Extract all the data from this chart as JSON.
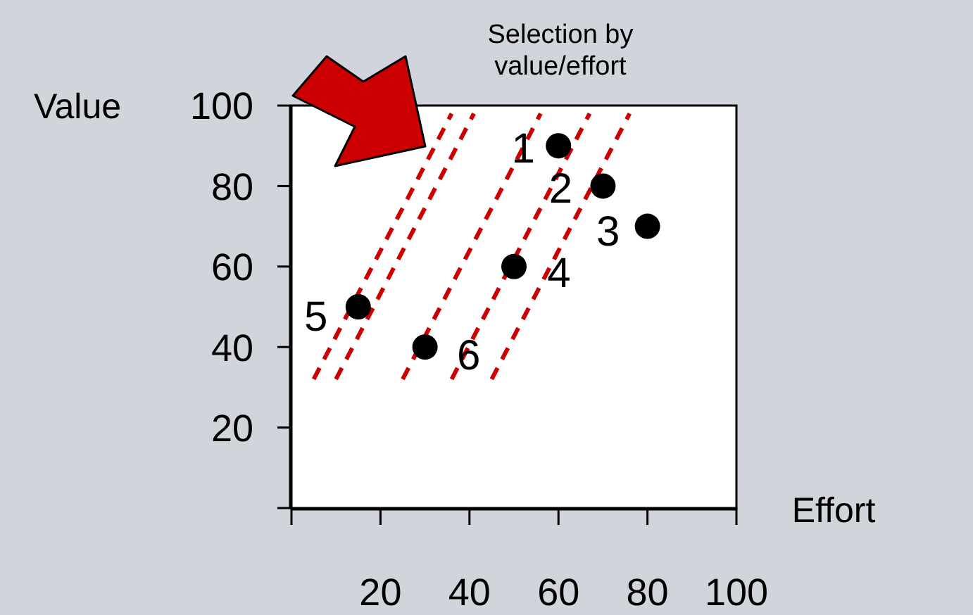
{
  "chart_data": {
    "type": "scatter",
    "title": "Selection by value/effort",
    "xlabel": "Effort",
    "ylabel": "Value",
    "xlim": [
      0,
      100
    ],
    "ylim": [
      0,
      100
    ],
    "xticks": [
      {
        "value": 0,
        "label": null
      },
      20,
      40,
      60,
      80,
      100
    ],
    "yticks": [
      {
        "value": 0,
        "label": null
      },
      20,
      40,
      60,
      80,
      100
    ],
    "grid": false,
    "marker": "circle",
    "series": [
      {
        "type": "line",
        "color": "#cc0000",
        "line_style": "dashed",
        "marker": "none",
        "x": [
          5,
          36
        ],
        "values": [
          32,
          98
        ]
      },
      {
        "type": "line",
        "color": "#cc0000",
        "line_style": "dashed",
        "marker": "none",
        "x": [
          10,
          41
        ],
        "values": [
          32,
          98
        ]
      },
      {
        "type": "line",
        "color": "#cc0000",
        "line_style": "dashed",
        "marker": "none",
        "x": [
          25,
          56
        ],
        "values": [
          32,
          98
        ]
      },
      {
        "type": "line",
        "color": "#cc0000",
        "line_style": "dashed",
        "marker": "none",
        "x": [
          36,
          67
        ],
        "values": [
          32,
          98
        ]
      },
      {
        "type": "line",
        "color": "#cc0000",
        "line_style": "dashed",
        "marker": "none",
        "x": [
          45,
          76
        ],
        "values": [
          32,
          98
        ]
      },
      {
        "color": "#000000",
        "x": [
          60,
          70,
          80,
          50,
          15,
          30
        ],
        "values": [
          90,
          80,
          70,
          60,
          50,
          40
        ]
      }
    ],
    "annotations": [
      {
        "text": "1",
        "x": 60,
        "y": 90
      },
      {
        "text": "2",
        "x": 70,
        "y": 80
      },
      {
        "text": "3",
        "x": 80,
        "y": 70
      },
      {
        "text": "4",
        "x": 50,
        "y": 60
      },
      {
        "text": "5",
        "x": 15,
        "y": 50
      },
      {
        "text": "6",
        "x": 30,
        "y": 40
      }
    ]
  }
}
